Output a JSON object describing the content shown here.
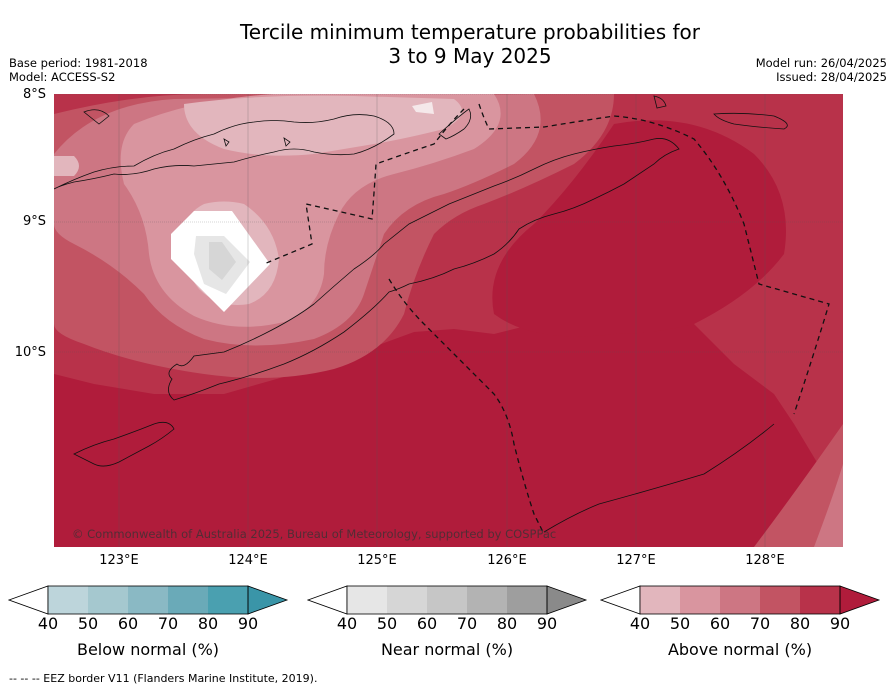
{
  "title_line1": "Tercile minimum temperature probabilities for",
  "title_line2": "3 to 9 May 2025",
  "base_period": "Base period: 1981-2018",
  "model": "Model: ACCESS-S2",
  "model_run": "Model run: 26/04/2025",
  "issued": "Issued: 28/04/2025",
  "lat_labels": [
    "8°S",
    "9°S",
    "10°S"
  ],
  "lon_labels": [
    "123°E",
    "124°E",
    "125°E",
    "126°E",
    "127°E",
    "128°E"
  ],
  "copyright": "© Commonwealth of Australia 2025, Bureau of Meteorology, supported by COSPPac",
  "colorbars": [
    {
      "label": "Below normal (%)",
      "ticks": [
        "40",
        "50",
        "60",
        "70",
        "80",
        "90"
      ],
      "colors": [
        "#bdd5db",
        "#a5c8cf",
        "#8ab9c4",
        "#6aaab8",
        "#4aa0b0",
        "#3a95a8"
      ]
    },
    {
      "label": "Near normal (%)",
      "ticks": [
        "40",
        "50",
        "60",
        "70",
        "80",
        "90"
      ],
      "colors": [
        "#e6e6e6",
        "#d6d6d6",
        "#c6c6c6",
        "#b3b3b3",
        "#9e9e9e",
        "#8a8a8a"
      ]
    },
    {
      "label": "Above normal (%)",
      "ticks": [
        "40",
        "50",
        "60",
        "70",
        "80",
        "90"
      ],
      "colors": [
        "#e2b6bd",
        "#d9959f",
        "#cd7683",
        "#c25463",
        "#b8324a",
        "#b01c3b"
      ]
    }
  ],
  "footnote": "--  --  -- EEZ border V11 (Flanders Marine Institute, 2019)."
}
